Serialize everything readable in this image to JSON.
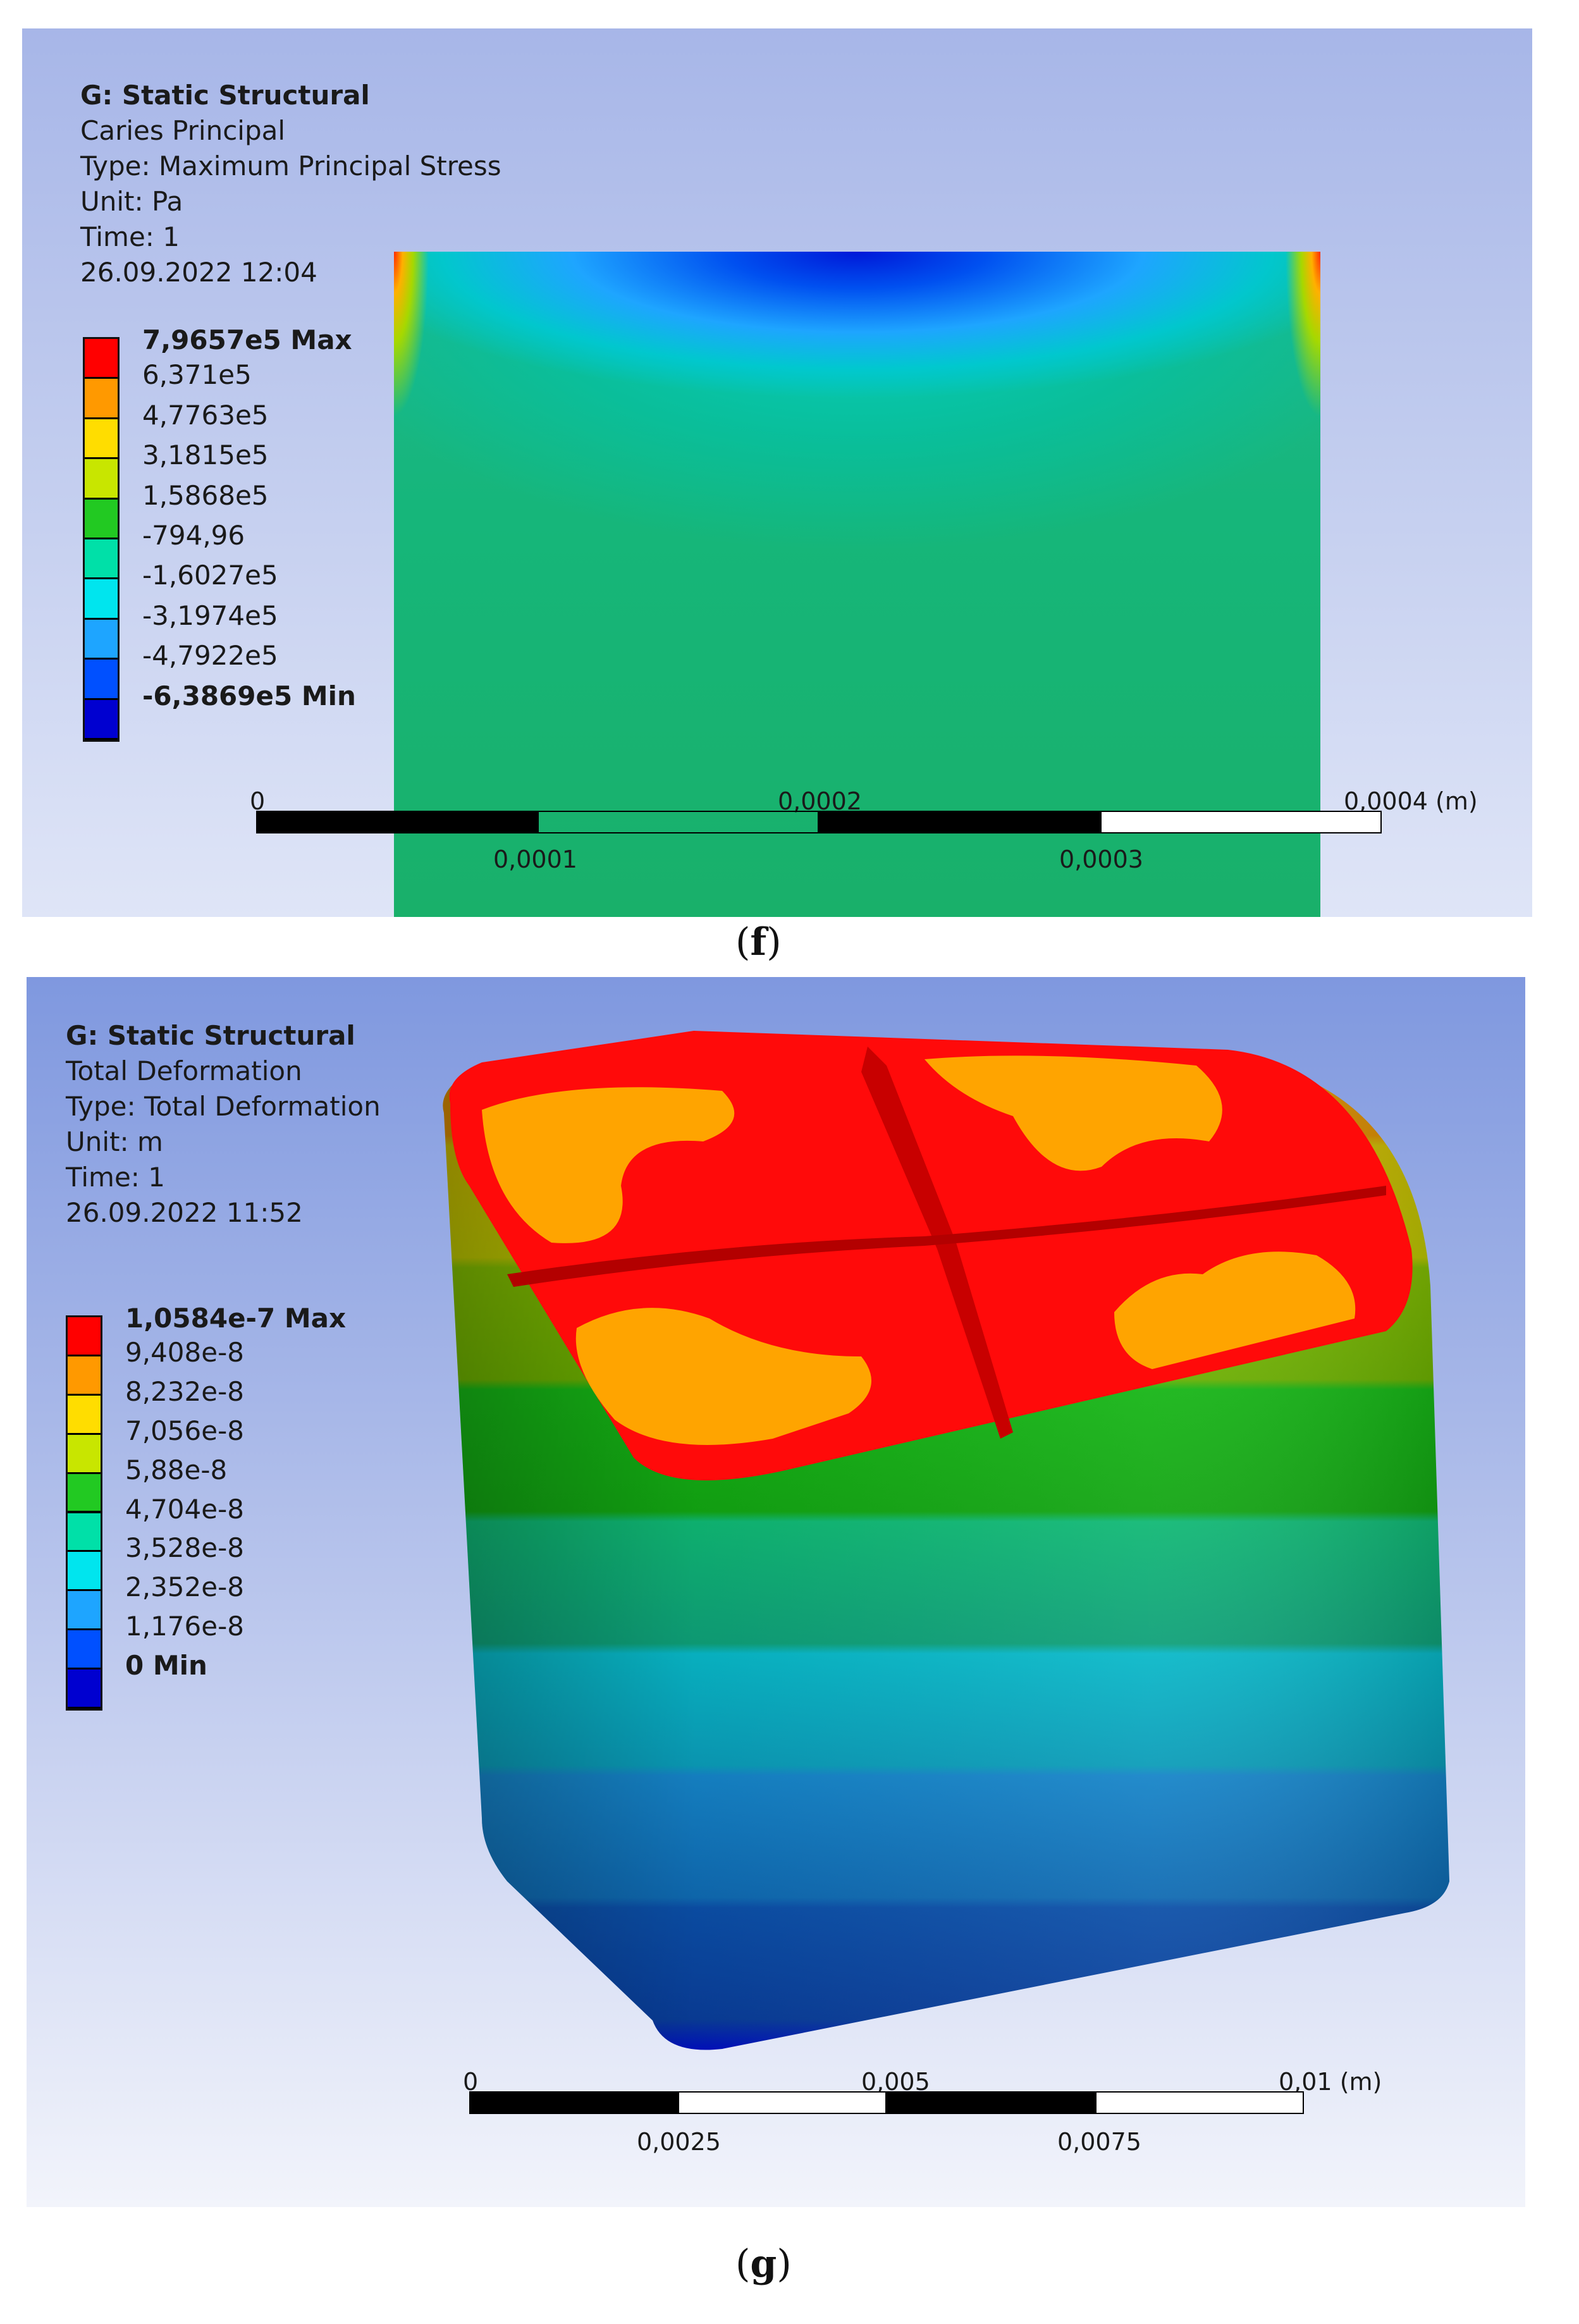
{
  "panel_f": {
    "title": "G: Static Structural",
    "result_name": "Caries Principal",
    "type": "Type: Maximum Principal Stress",
    "unit": "Unit: Pa",
    "time": "Time: 1",
    "timestamp": "26.09.2022 12:04",
    "legend": {
      "labels": [
        "7,9657e5 Max",
        "6,371e5",
        "4,7763e5",
        "3,1815e5",
        "1,5868e5",
        "-794,96",
        "-1,6027e5",
        "-3,1974e5",
        "-4,7922e5",
        "-6,3869e5 Min"
      ],
      "colors": [
        "#ff0000",
        "#ff9900",
        "#ffdd00",
        "#c8e600",
        "#22c922",
        "#00e0a8",
        "#00e5ee",
        "#1ea5ff",
        "#0050ff",
        "#0000d0"
      ]
    },
    "scale": {
      "top_labels": [
        "0",
        "0,0002",
        "0,0004 (m)"
      ],
      "bottom_labels": [
        "0,0001",
        "0,0003"
      ]
    },
    "caption_letter": "f"
  },
  "panel_g": {
    "title": "G: Static Structural",
    "result_name": "Total Deformation",
    "type": "Type: Total Deformation",
    "unit": "Unit: m",
    "time": "Time: 1",
    "timestamp": "26.09.2022 11:52",
    "legend": {
      "labels": [
        "1,0584e-7 Max",
        "9,408e-8",
        "8,232e-8",
        "7,056e-8",
        "5,88e-8",
        "4,704e-8",
        "3,528e-8",
        "2,352e-8",
        "1,176e-8",
        "0 Min"
      ],
      "colors": [
        "#ff0000",
        "#ff9900",
        "#ffdd00",
        "#c8e600",
        "#22c922",
        "#00e0a8",
        "#00e5ee",
        "#1ea5ff",
        "#0050ff",
        "#0000d0"
      ]
    },
    "scale": {
      "top_labels": [
        "0",
        "0,005",
        "0,01 (m)"
      ],
      "bottom_labels": [
        "0,0025",
        "0,0075"
      ]
    },
    "caption_letter": "g"
  }
}
